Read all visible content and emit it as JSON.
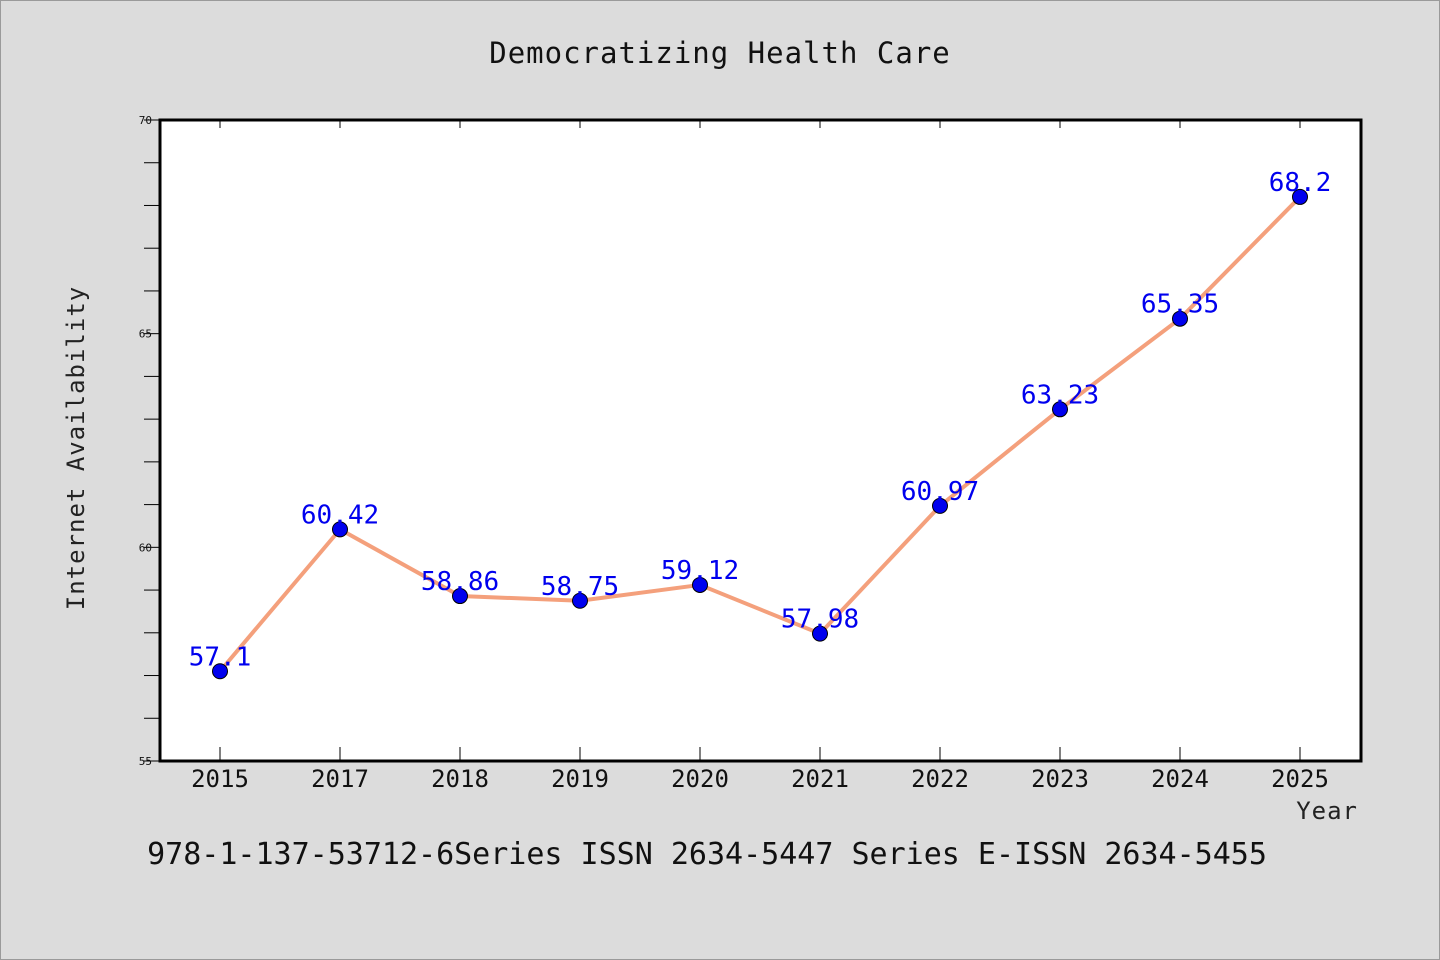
{
  "title": "Democratizing Health Care",
  "footer": "978-1-137-53712-6Series ISSN 2634-5447 Series E-ISSN 2634-5455",
  "colors": {
    "line": "#f4a07c",
    "marker": "#0000ee",
    "label": "#0000ee",
    "background": "#dcdcdc",
    "plot_background": "#ffffff"
  },
  "chart_data": {
    "type": "line",
    "title": "Democratizing Health Care",
    "xlabel": "Year",
    "ylabel": "Internet Availability",
    "categories": [
      "2015",
      "2017",
      "2018",
      "2019",
      "2020",
      "2021",
      "2022",
      "2023",
      "2024",
      "2025"
    ],
    "series": [
      {
        "values": [
          57.1,
          60.42,
          58.86,
          58.75,
          59.12,
          57.98,
          60.97,
          63.23,
          65.35,
          68.2
        ]
      }
    ],
    "data_labels": [
      "57.1",
      "60.42",
      "58.86",
      "58.75",
      "59.12",
      "57.98",
      "60.97",
      "63.23",
      "65.35",
      "68.2"
    ],
    "ylim": [
      55,
      70
    ],
    "yticks": [
      "55",
      "60",
      "65",
      "70"
    ],
    "grid": false,
    "legend": "none"
  }
}
